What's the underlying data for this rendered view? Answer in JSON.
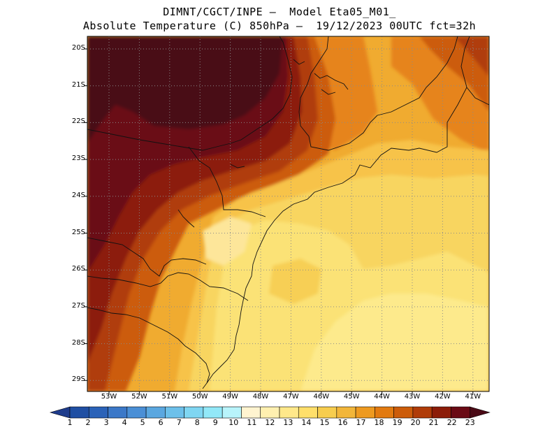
{
  "header": {
    "line1": "DIMNT/CGCT/INPE –  Model Eta05_M01_",
    "line2": "Absolute Temperature (C) 850hPa –  19/12/2023 00UTC fct=32h"
  },
  "axes": {
    "lat_labels": [
      "20S",
      "21S",
      "22S",
      "23S",
      "24S",
      "25S",
      "26S",
      "27S",
      "28S",
      "29S"
    ],
    "lon_labels": [
      "53W",
      "52W",
      "51W",
      "50W",
      "49W",
      "48W",
      "47W",
      "46W",
      "45W",
      "44W",
      "43W",
      "42W",
      "41W"
    ]
  },
  "colorbar": {
    "labels": [
      "1",
      "2",
      "3",
      "4",
      "5",
      "6",
      "7",
      "8",
      "9",
      "10",
      "11",
      "12",
      "13",
      "14",
      "15",
      "16",
      "17",
      "18",
      "19",
      "20",
      "21",
      "22",
      "23"
    ],
    "colors": [
      "#1e3c8c",
      "#1f4fa3",
      "#2a62b8",
      "#3b78c8",
      "#4a8fd6",
      "#5aa7e0",
      "#6cc0ea",
      "#7fd6f2",
      "#92e8f8",
      "#b8f4fb",
      "#fff4d0",
      "#fff0b0",
      "#ffe88a",
      "#ffdf6a",
      "#f7cd4e",
      "#f2b63a",
      "#ee9a20",
      "#e27a10",
      "#cc5c0a",
      "#b03c08",
      "#8c1c08",
      "#6a0a14",
      "#4a0a16"
    ]
  },
  "map_fields": {
    "field_levels": [
      13.5,
      14.5,
      15.5,
      16.5,
      17.5,
      18.5,
      19.5,
      20.5,
      21.5,
      22.5
    ]
  }
}
